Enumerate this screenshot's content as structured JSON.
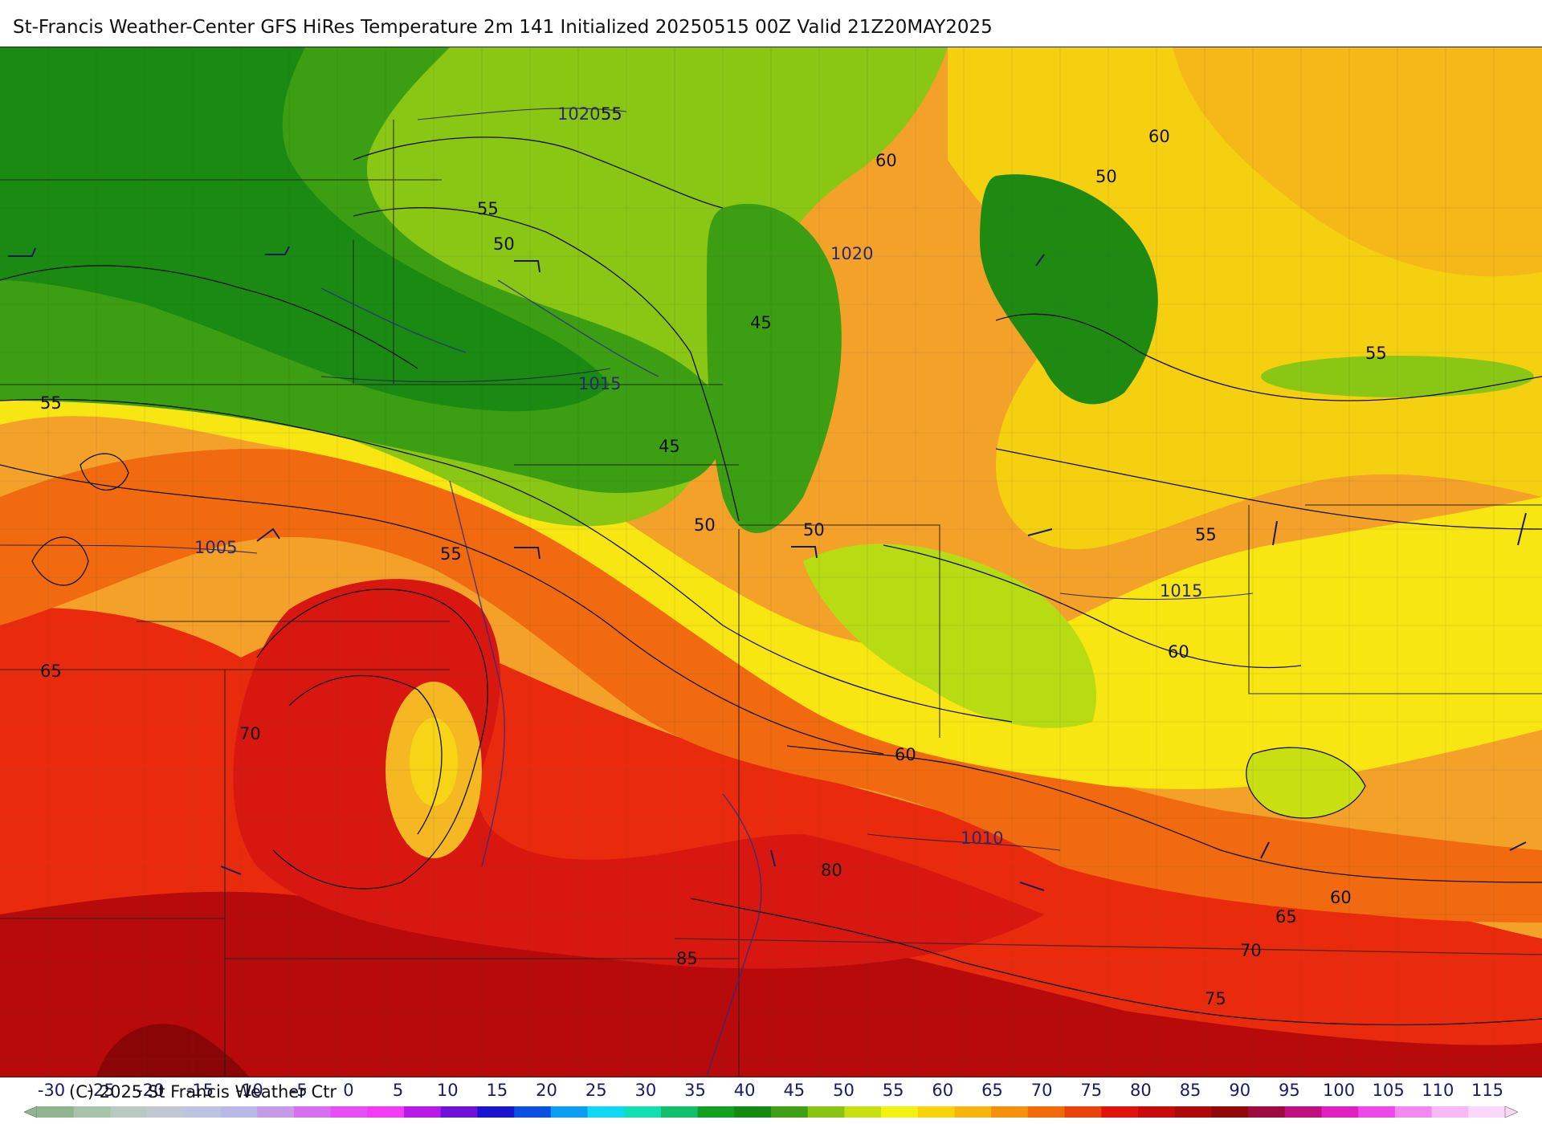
{
  "title": "St-Francis Weather-Center GFS HiRes Temperature 2m  141 Initialized 20250515 00Z Valid 21Z20MAY2025",
  "copyright": "(C) 2025 St Francis Weather Ctr",
  "map": {
    "isotherm_labels": [
      "55",
      "55",
      "50",
      "45",
      "45",
      "50",
      "50",
      "55",
      "55",
      "60",
      "60",
      "50",
      "60",
      "55",
      "65",
      "70",
      "60",
      "80",
      "85",
      "75",
      "70",
      "65",
      "60",
      "60",
      "55"
    ],
    "isobar_labels": [
      "1020",
      "1020",
      "1015",
      "1005",
      "1015",
      "1010"
    ]
  },
  "colorbar": {
    "ticks": [
      "-30",
      "-25",
      "-20",
      "-15",
      "-10",
      "-5",
      "0",
      "5",
      "10",
      "15",
      "20",
      "25",
      "30",
      "35",
      "40",
      "45",
      "50",
      "55",
      "60",
      "65",
      "70",
      "75",
      "80",
      "85",
      "90",
      "95",
      "100",
      "105",
      "110",
      "115"
    ],
    "colors": [
      "#8fb58f",
      "#a8c4a8",
      "#b7c9c0",
      "#c0c8d4",
      "#bcc4e0",
      "#b9b8e6",
      "#c59be8",
      "#d86ff0",
      "#e84ef5",
      "#f03cf7",
      "#b81be6",
      "#6f12d8",
      "#1a14d0",
      "#0a4fe0",
      "#0a9ef2",
      "#0fd8f4",
      "#12e0b4",
      "#12c06a",
      "#11a020",
      "#138a12",
      "#3ea012",
      "#88c412",
      "#c8e012",
      "#f2f212",
      "#f7d40a",
      "#f7b40a",
      "#f5900a",
      "#f06a0a",
      "#ea420c",
      "#e0140c",
      "#c80c0c",
      "#ae0a0a",
      "#900808",
      "#a00a40",
      "#c01080",
      "#e020c0",
      "#f048e8",
      "#f488f0",
      "#f8b8f6",
      "#fbd8fa"
    ]
  }
}
